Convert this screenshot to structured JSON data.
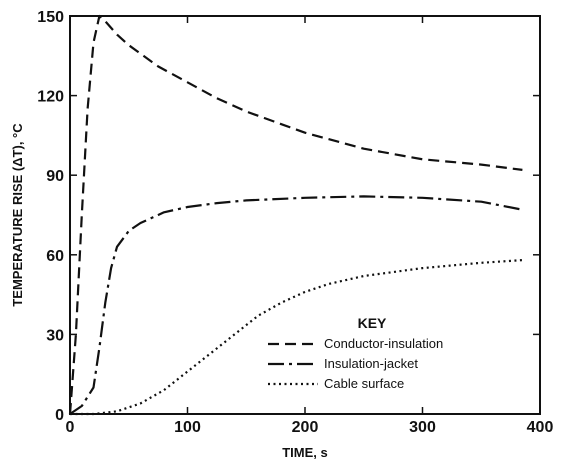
{
  "chart_data": {
    "type": "line",
    "xlabel": "TIME, s",
    "ylabel": "TEMPERATURE RISE (ΔT), °C",
    "xlim": [
      0,
      400
    ],
    "ylim": [
      0,
      150
    ],
    "xticks": [
      0,
      100,
      200,
      300,
      400
    ],
    "yticks": [
      0,
      30,
      60,
      90,
      120,
      150
    ],
    "grid": false,
    "legend_title": "KEY",
    "legend_position": "bottom-right",
    "series": [
      {
        "name": "Conductor-insulation",
        "style": "dashed",
        "x": [
          0,
          5,
          10,
          15,
          20,
          25,
          30,
          40,
          50,
          75,
          100,
          125,
          150,
          175,
          200,
          250,
          300,
          350,
          385
        ],
        "y": [
          0,
          30,
          75,
          115,
          140,
          150,
          148,
          143,
          139,
          131,
          125,
          119,
          114,
          110,
          106,
          100,
          96,
          94,
          92
        ]
      },
      {
        "name": "Insulation-jacket",
        "style": "dash-dot",
        "x": [
          0,
          10,
          20,
          25,
          30,
          35,
          40,
          50,
          60,
          80,
          100,
          125,
          150,
          200,
          250,
          300,
          350,
          385
        ],
        "y": [
          0,
          3,
          10,
          25,
          42,
          55,
          63,
          69,
          72,
          76,
          78,
          79.5,
          80.5,
          81.5,
          82,
          81.5,
          80,
          77
        ]
      },
      {
        "name": "Cable surface",
        "style": "dotted",
        "x": [
          0,
          20,
          40,
          60,
          80,
          100,
          120,
          140,
          160,
          180,
          200,
          220,
          250,
          300,
          350,
          385
        ],
        "y": [
          0,
          0,
          1,
          4,
          9,
          16,
          23,
          30,
          37,
          42,
          46,
          49,
          52,
          55,
          57,
          58
        ]
      }
    ]
  }
}
